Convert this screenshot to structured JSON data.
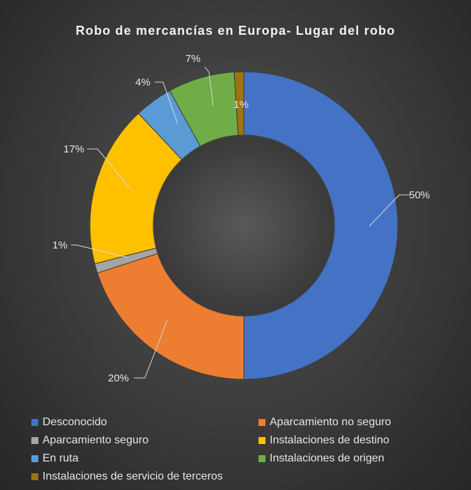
{
  "chart_data": {
    "type": "pie",
    "subtype": "doughnut",
    "title": "Robo de mercancías en Europa- Lugar del robo",
    "slices": [
      {
        "name": "Desconocido",
        "value": 50,
        "label": "50%",
        "color": "#4472c4"
      },
      {
        "name": "Aparcamiento no seguro",
        "value": 20,
        "label": "20%",
        "color": "#ed7d31"
      },
      {
        "name": "Aparcamiento seguro",
        "value": 1,
        "label": "1%",
        "color": "#a5a5a5"
      },
      {
        "name": "Instalaciones de destino",
        "value": 17,
        "label": "17%",
        "color": "#ffc000"
      },
      {
        "name": "En ruta",
        "value": 4,
        "label": "4%",
        "color": "#5b9bd5"
      },
      {
        "name": "Instalaciones de origen",
        "value": 7,
        "label": "7%",
        "color": "#70ad47"
      },
      {
        "name": "Instalaciones de servicio de terceros",
        "value": 1,
        "label": "1%",
        "color": "#9e7410"
      }
    ],
    "legend_position": "bottom"
  }
}
